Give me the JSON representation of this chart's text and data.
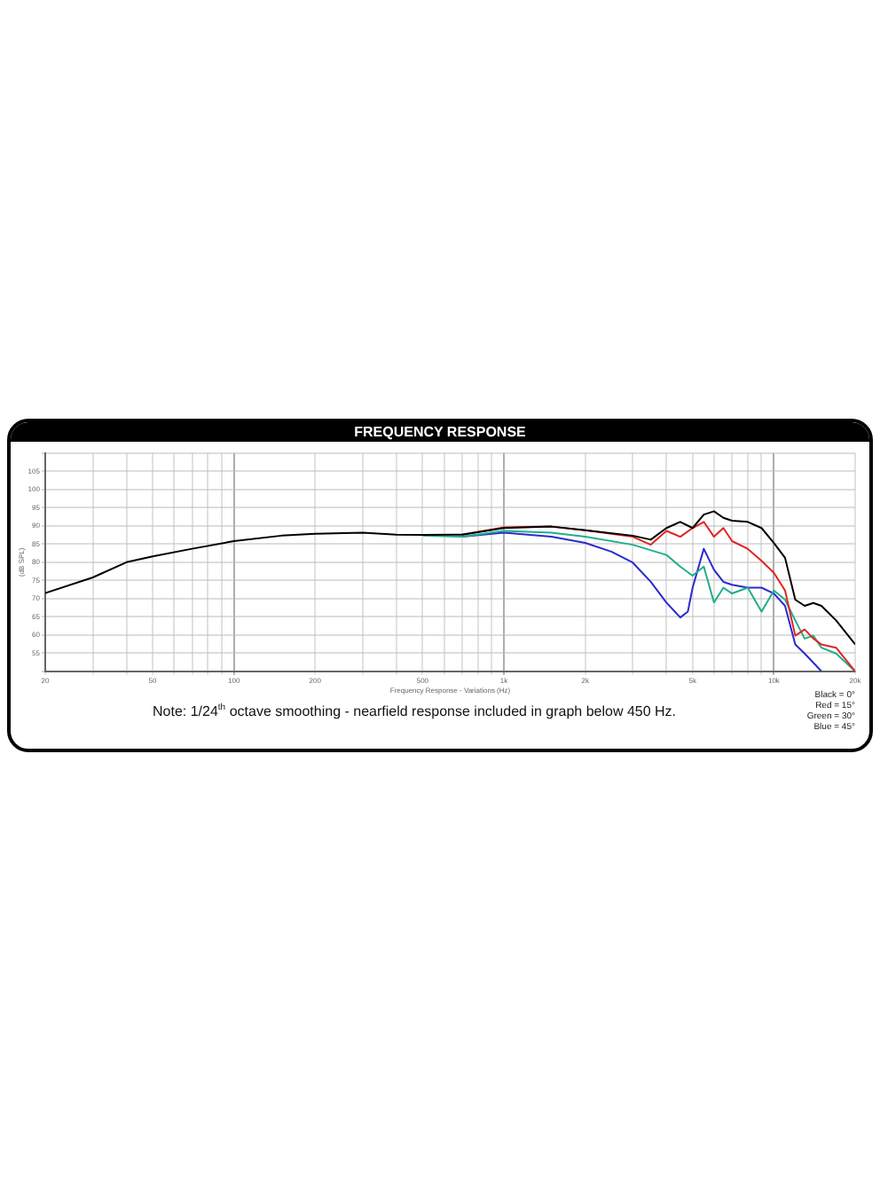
{
  "chart_data": {
    "type": "line",
    "title": "FREQUENCY RESPONSE",
    "xlabel": "Frequency Response - Variations (Hz)",
    "ylabel": "(dB SPL)",
    "log": "x",
    "grid": true,
    "legend": false,
    "marker": "none",
    "line_style": "solid",
    "xlim": [
      20,
      20000
    ],
    "xticks": [
      20,
      {
        "value": 30,
        "label": null
      },
      {
        "value": 40,
        "label": null
      },
      50,
      {
        "value": 60,
        "label": null
      },
      {
        "value": 70,
        "label": null
      },
      {
        "value": 80,
        "label": null
      },
      {
        "value": 90,
        "label": null
      },
      100,
      200,
      {
        "value": 300,
        "label": null
      },
      {
        "value": 400,
        "label": null
      },
      500,
      {
        "value": 600,
        "label": null
      },
      {
        "value": 700,
        "label": null
      },
      {
        "value": 800,
        "label": null
      },
      {
        "value": 900,
        "label": null
      },
      {
        "value": 1000,
        "label": "1k"
      },
      {
        "value": 2000,
        "label": "2k"
      },
      {
        "value": 3000,
        "label": null
      },
      {
        "value": 4000,
        "label": null
      },
      {
        "value": 5000,
        "label": "5k"
      },
      {
        "value": 6000,
        "label": null
      },
      {
        "value": 7000,
        "label": null
      },
      {
        "value": 8000,
        "label": null
      },
      {
        "value": 9000,
        "label": null
      },
      {
        "value": 10000,
        "label": "10k"
      },
      {
        "value": 20000,
        "label": "20k"
      }
    ],
    "ylim": [
      50,
      110
    ],
    "yticks": [
      {
        "value": 50,
        "label": null
      },
      55,
      60,
      65,
      70,
      75,
      80,
      85,
      90,
      95,
      100,
      105,
      {
        "value": 110,
        "label": null
      }
    ],
    "series": [
      {
        "color": "#000000",
        "x": [
          20,
          30,
          40,
          50,
          70,
          100,
          150,
          200,
          300,
          400,
          500,
          700,
          1000,
          1500,
          2000,
          3000,
          3500,
          4000,
          4500,
          5000,
          5500,
          6000,
          6500,
          7000,
          8000,
          9000,
          10000,
          11000,
          12000,
          13000,
          14000,
          15000,
          17000,
          20000
        ],
        "values": [
          71.5,
          75.8,
          80,
          81.6,
          83.7,
          85.8,
          87.3,
          87.8,
          88.1,
          87.6,
          87.5,
          87.6,
          89.4,
          89.8,
          88.8,
          87.3,
          86.2,
          89.4,
          91.1,
          89.4,
          93.1,
          94,
          92.2,
          91.4,
          91.1,
          89.4,
          85.3,
          81.2,
          69.7,
          68,
          68.8,
          68,
          64,
          57.4
        ]
      },
      {
        "color": "#e02424",
        "x": [
          700,
          1000,
          1500,
          2000,
          3000,
          3500,
          4000,
          4500,
          5000,
          5500,
          6000,
          6500,
          7000,
          8000,
          9000,
          10000,
          11000,
          12000,
          13000,
          14000,
          15000,
          17000,
          20000
        ],
        "values": [
          87.6,
          89.6,
          89.8,
          88.8,
          87,
          84.8,
          88.6,
          87,
          89.4,
          91.1,
          87,
          89.4,
          85.8,
          83.7,
          80.4,
          77.1,
          72.2,
          59.8,
          61.5,
          59,
          57.4,
          56.5,
          50
        ]
      },
      {
        "color": "#1fae8c",
        "x": [
          500,
          700,
          1000,
          1500,
          2000,
          3000,
          4000,
          4500,
          5000,
          5500,
          6000,
          6500,
          7000,
          8000,
          9000,
          10000,
          11000,
          12000,
          13000,
          14000,
          15000,
          17000,
          20000
        ],
        "values": [
          87.3,
          87,
          88.6,
          88.1,
          87,
          84.8,
          82,
          78.8,
          76.3,
          78.8,
          68.9,
          73,
          71.4,
          73,
          66.4,
          72.2,
          69.7,
          64,
          59,
          59.8,
          56.5,
          54.9,
          50
        ]
      },
      {
        "color": "#2a2ad0",
        "x": [
          700,
          1000,
          1500,
          2000,
          2500,
          3000,
          3500,
          4000,
          4500,
          4800,
          5000,
          5500,
          6000,
          6500,
          7000,
          8000,
          9000,
          10000,
          11000,
          12000,
          13000,
          15000
        ],
        "values": [
          87,
          88.1,
          87,
          85.3,
          82.9,
          79.9,
          74.6,
          68.9,
          64.8,
          66.4,
          73,
          83.7,
          77.9,
          74.6,
          73.8,
          73,
          73,
          71.4,
          68,
          57.4,
          54.9,
          50
        ]
      }
    ],
    "annotations": [
      "Note: 1/24$^{th}$ octave smoothing - nearfield response included in graph below 450 Hz.",
      "Black = 0°",
      "Red = 15°",
      "Green = 30°",
      "Blue = 45°"
    ]
  }
}
